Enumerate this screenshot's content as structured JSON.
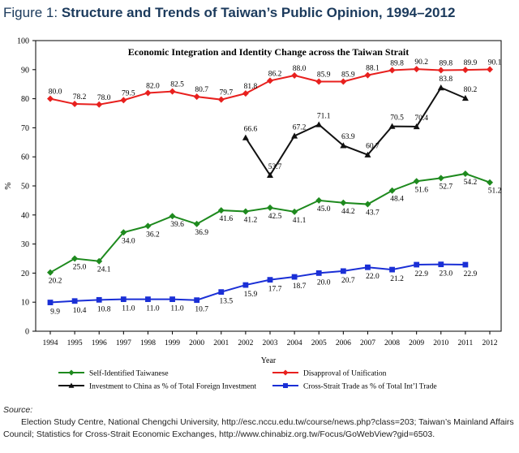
{
  "figure": {
    "label": "Figure 1:",
    "title": "Structure and Trends of Taiwan’s Public Opinion, 1994–2012"
  },
  "source": {
    "label": "Source:",
    "text": "Election Study Centre, National Chengchi University, http://esc.nccu.edu.tw/course/news.php?class=203; Taiwan’s Mainland Affairs Council; Statistics for Cross-Strait Economic Exchanges, http://www.chinabiz.org.tw/Focus/GoWebView?gid=6503."
  },
  "chart_data": {
    "type": "line",
    "title": "Economic Integration and Identity Change across the Taiwan Strait",
    "xlabel": "Year",
    "ylabel": "%",
    "ylim": [
      0,
      100
    ],
    "yticks": [
      0,
      10,
      20,
      30,
      40,
      50,
      60,
      70,
      80,
      90,
      100
    ],
    "categories": [
      "1994",
      "1995",
      "1996",
      "1997",
      "1998",
      "1999",
      "2000",
      "2001",
      "2002",
      "2003",
      "2004",
      "2005",
      "2006",
      "2007",
      "2008",
      "2009",
      "2010",
      "2011",
      "2012"
    ],
    "legend_position": "bottom",
    "series": [
      {
        "name": "Self-Identified Taiwanese",
        "color": "#1e8a1e",
        "marker": "diamond",
        "values": [
          20.2,
          25.0,
          24.1,
          34.0,
          36.2,
          39.6,
          36.9,
          41.6,
          41.2,
          42.5,
          41.1,
          45.0,
          44.2,
          43.7,
          48.4,
          51.6,
          52.7,
          54.2,
          51.2
        ],
        "labels": [
          "20.2",
          "25.0",
          "24.1",
          "34.0",
          "36.2",
          "39.6",
          "36.9",
          "41.6",
          "41.2",
          "42.5",
          "41.1",
          "45.0",
          "44.2",
          "43.7",
          "48.4",
          "51.6",
          "52.7",
          "54.2",
          "51.2"
        ]
      },
      {
        "name": "Disapproval of Unification",
        "color": "#e8201e",
        "marker": "diamond",
        "values": [
          80.0,
          78.2,
          78.0,
          79.5,
          82.0,
          82.5,
          80.7,
          79.7,
          81.8,
          86.2,
          88.0,
          85.9,
          85.9,
          88.1,
          89.8,
          90.2,
          89.8,
          89.9,
          90.1
        ],
        "labels": [
          "80.0",
          "78.2",
          "78.0",
          "79.5",
          "82.0",
          "82.5",
          "80.7",
          "79.7",
          "81.8",
          "86.2",
          "88.0",
          "85.9",
          "85.9",
          "88.1",
          "89.8",
          "90.2",
          "89.8",
          "89.9",
          "90.1"
        ]
      },
      {
        "name": "Investment to China as % of Total Foreign Investment",
        "color": "#111111",
        "marker": "triangle",
        "values": [
          null,
          null,
          null,
          null,
          null,
          null,
          null,
          null,
          66.6,
          53.7,
          67.2,
          71.1,
          63.9,
          60.7,
          70.5,
          70.4,
          83.8,
          80.2,
          null
        ],
        "labels": [
          "",
          "",
          "",
          "",
          "",
          "",
          "",
          "",
          "66.6",
          "53.7",
          "67.2",
          "71.1",
          "63.9",
          "60.7",
          "70.5",
          "70.4",
          "83.8",
          "80.2",
          ""
        ]
      },
      {
        "name": "Cross-Strait Trade as % of Total Int’l Trade",
        "color": "#1a2fd6",
        "marker": "square",
        "values": [
          9.9,
          10.4,
          10.8,
          11.0,
          11.0,
          11.0,
          10.7,
          13.5,
          15.9,
          17.7,
          18.7,
          20.0,
          20.7,
          22.0,
          21.2,
          22.9,
          23.0,
          22.9,
          null
        ],
        "labels": [
          "9.9",
          "10.4",
          "10.8",
          "11.0",
          "11.0",
          "11.0",
          "10.7",
          "13.5",
          "15.9",
          "17.7",
          "18.7",
          "20.0",
          "20.7",
          "22.0",
          "21.2",
          "22.9",
          "23.0",
          "22.9",
          ""
        ]
      }
    ]
  }
}
